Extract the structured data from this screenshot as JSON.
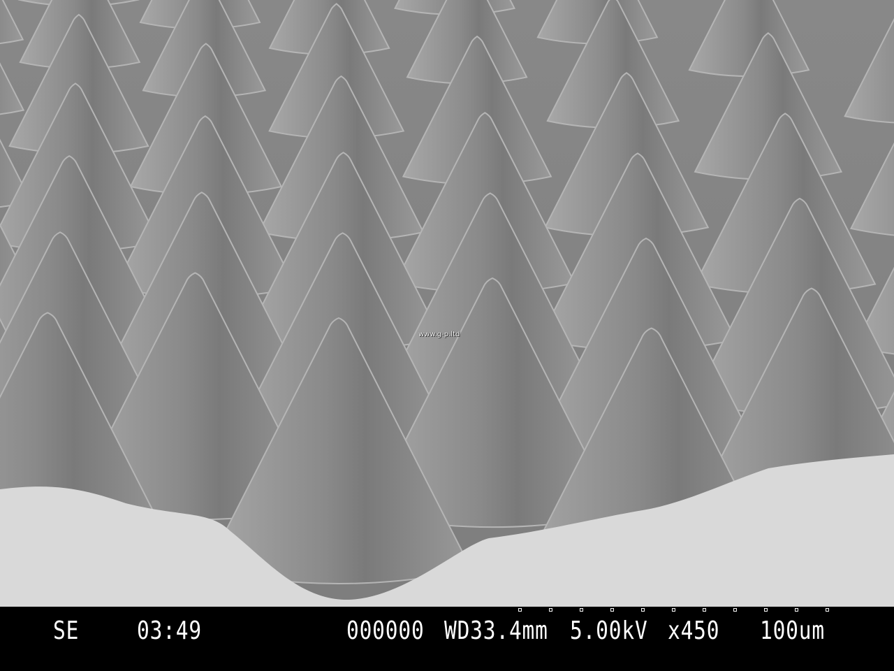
{
  "image": {
    "subject": "SEM micrograph of cone/pyramid array",
    "watermark": "www.g-p.ltd"
  },
  "info_bar": {
    "detector": "SE",
    "time": "03:49",
    "image_number": "000000",
    "working_distance": "WD33.4mm",
    "voltage": "5.00kV",
    "magnification": "x450",
    "scale": "100um",
    "scale_bar_ticks": 11
  },
  "colors": {
    "bar": "#000000",
    "text": "#ffffff",
    "ground": "#d9d9d9",
    "cone": "#8c8c8c"
  }
}
